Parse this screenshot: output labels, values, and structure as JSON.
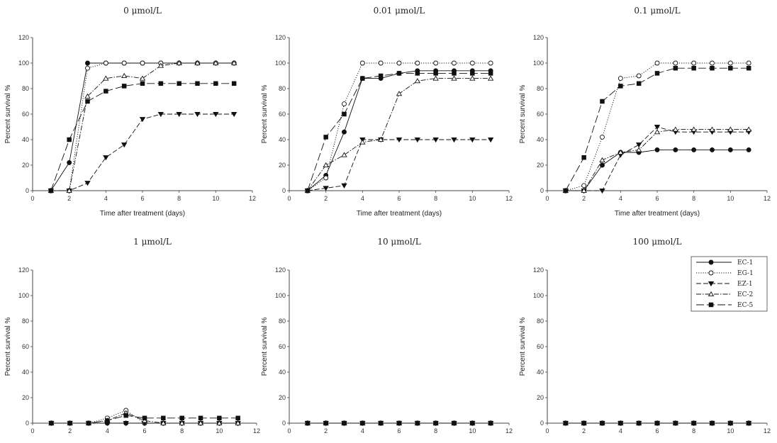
{
  "legend": [
    {
      "id": "ec1",
      "label": "EC-1",
      "marker": "circle-filled",
      "dash": ""
    },
    {
      "id": "eg1",
      "label": "EG-1",
      "marker": "circle-open",
      "dash": "1.2,2"
    },
    {
      "id": "ez1",
      "label": "EZ-1",
      "marker": "tri-down-filled",
      "dash": "7,3"
    },
    {
      "id": "ec2",
      "label": "EC-2",
      "marker": "tri-up-open",
      "dash": "7,2,1.5,2"
    },
    {
      "id": "ec5",
      "label": "EC-5",
      "marker": "square-filled",
      "dash": "11,4"
    }
  ],
  "chart_data": [
    {
      "type": "line",
      "title": "0 μmol/L",
      "xlabel": "Time after treatment (days)",
      "ylabel": "Percent survival %",
      "xlim": [
        0,
        12
      ],
      "ylim": [
        0,
        120
      ],
      "xticks": [
        0,
        2,
        4,
        6,
        8,
        10,
        12
      ],
      "yticks": [
        0,
        20,
        40,
        60,
        80,
        100,
        120
      ],
      "x": [
        1,
        2,
        3,
        4,
        5,
        6,
        7,
        8,
        9,
        10,
        11
      ],
      "series": [
        {
          "name": "EC-1",
          "values": [
            0,
            22,
            100,
            100,
            100,
            100,
            100,
            100,
            100,
            100,
            100
          ]
        },
        {
          "name": "EG-1",
          "values": [
            0,
            0,
            96,
            100,
            100,
            100,
            100,
            100,
            100,
            100,
            100
          ]
        },
        {
          "name": "EZ-1",
          "values": [
            0,
            0,
            6,
            26,
            36,
            56,
            60,
            60,
            60,
            60,
            60
          ]
        },
        {
          "name": "EC-2",
          "values": [
            0,
            0,
            74,
            88,
            90,
            88,
            98,
            100,
            100,
            100,
            100
          ]
        },
        {
          "name": "EC-5",
          "values": [
            0,
            40,
            70,
            78,
            82,
            84,
            84,
            84,
            84,
            84,
            84
          ]
        }
      ]
    },
    {
      "type": "line",
      "title": "0.01 μmol/L",
      "xlabel": "Time after treatment (days)",
      "ylabel": "Percent survival %",
      "xlim": [
        0,
        12
      ],
      "ylim": [
        0,
        120
      ],
      "xticks": [
        0,
        2,
        4,
        6,
        8,
        10,
        12
      ],
      "yticks": [
        0,
        20,
        40,
        60,
        80,
        100,
        120
      ],
      "x": [
        1,
        2,
        3,
        4,
        5,
        6,
        7,
        8,
        9,
        10,
        11
      ],
      "series": [
        {
          "name": "EC-1",
          "values": [
            0,
            12,
            46,
            88,
            88,
            92,
            94,
            94,
            94,
            94,
            94
          ]
        },
        {
          "name": "EG-1",
          "values": [
            0,
            10,
            68,
            100,
            100,
            100,
            100,
            100,
            100,
            100,
            100
          ]
        },
        {
          "name": "EZ-1",
          "values": [
            0,
            2,
            4,
            40,
            40,
            40,
            40,
            40,
            40,
            40,
            40
          ]
        },
        {
          "name": "EC-2",
          "values": [
            0,
            20,
            28,
            38,
            40,
            76,
            86,
            88,
            88,
            88,
            88
          ]
        },
        {
          "name": "EC-5",
          "values": [
            0,
            42,
            60,
            88,
            90,
            92,
            92,
            92,
            92,
            92,
            92
          ]
        }
      ]
    },
    {
      "type": "line",
      "title": "0.1 μmol/L",
      "xlabel": "Time after treatment (days)",
      "ylabel": "Percent survival %",
      "xlim": [
        0,
        12
      ],
      "ylim": [
        0,
        120
      ],
      "xticks": [
        0,
        2,
        4,
        6,
        8,
        10,
        12
      ],
      "yticks": [
        0,
        20,
        40,
        60,
        80,
        100,
        120
      ],
      "x": [
        1,
        2,
        3,
        4,
        5,
        6,
        7,
        8,
        9,
        10,
        11
      ],
      "series": [
        {
          "name": "EC-1",
          "values": [
            0,
            0,
            20,
            30,
            30,
            32,
            32,
            32,
            32,
            32,
            32
          ]
        },
        {
          "name": "EG-1",
          "values": [
            0,
            4,
            42,
            88,
            90,
            100,
            100,
            100,
            100,
            100,
            100
          ]
        },
        {
          "name": "EZ-1",
          "values": [
            0,
            0,
            0,
            28,
            36,
            50,
            46,
            46,
            46,
            46,
            46
          ]
        },
        {
          "name": "EC-2",
          "values": [
            0,
            0,
            24,
            30,
            32,
            46,
            48,
            48,
            48,
            48,
            48
          ]
        },
        {
          "name": "EC-5",
          "values": [
            0,
            26,
            70,
            82,
            84,
            92,
            96,
            96,
            96,
            96,
            96
          ]
        }
      ]
    },
    {
      "type": "line",
      "title": "1 μmol/L",
      "xlabel": "",
      "ylabel": "Percent survival %",
      "xlim": [
        0,
        12
      ],
      "ylim": [
        0,
        120
      ],
      "xticks": [
        0,
        2,
        4,
        6,
        8,
        10,
        12
      ],
      "yticks": [
        0,
        20,
        40,
        60,
        80,
        100,
        120
      ],
      "x": [
        1,
        2,
        3,
        4,
        5,
        6,
        7,
        8,
        9,
        10,
        11
      ],
      "series": [
        {
          "name": "EC-1",
          "values": [
            0,
            0,
            0,
            0,
            0,
            0,
            0,
            0,
            0,
            0,
            0
          ]
        },
        {
          "name": "EG-1",
          "values": [
            0,
            0,
            0,
            4,
            10,
            0,
            0,
            0,
            0,
            0,
            0
          ]
        },
        {
          "name": "EZ-1",
          "values": [
            0,
            0,
            0,
            0,
            0,
            0,
            0,
            0,
            0,
            0,
            0
          ]
        },
        {
          "name": "EC-2",
          "values": [
            0,
            0,
            0,
            2,
            8,
            2,
            0,
            0,
            0,
            0,
            0
          ]
        },
        {
          "name": "EC-5",
          "values": [
            0,
            0,
            0,
            2,
            6,
            4,
            4,
            4,
            4,
            4,
            4
          ]
        }
      ]
    },
    {
      "type": "line",
      "title": "10 μmol/L",
      "xlabel": "",
      "ylabel": "Percent survival %",
      "xlim": [
        0,
        12
      ],
      "ylim": [
        0,
        120
      ],
      "xticks": [
        0,
        2,
        4,
        6,
        8,
        10,
        12
      ],
      "yticks": [
        0,
        20,
        40,
        60,
        80,
        100,
        120
      ],
      "x": [
        1,
        2,
        3,
        4,
        5,
        6,
        7,
        8,
        9,
        10,
        11
      ],
      "series": [
        {
          "name": "EC-1",
          "values": [
            0,
            0,
            0,
            0,
            0,
            0,
            0,
            0,
            0,
            0,
            0
          ]
        },
        {
          "name": "EG-1",
          "values": [
            0,
            0,
            0,
            0,
            0,
            0,
            0,
            0,
            0,
            0,
            0
          ]
        },
        {
          "name": "EZ-1",
          "values": [
            0,
            0,
            0,
            0,
            0,
            0,
            0,
            0,
            0,
            0,
            0
          ]
        },
        {
          "name": "EC-2",
          "values": [
            0,
            0,
            0,
            0,
            0,
            0,
            0,
            0,
            0,
            0,
            0
          ]
        },
        {
          "name": "EC-5",
          "values": [
            0,
            0,
            0,
            0,
            0,
            0,
            0,
            0,
            0,
            0,
            0
          ]
        }
      ]
    },
    {
      "type": "line",
      "title": "100 μmol/L",
      "xlabel": "",
      "ylabel": "Percent survival %",
      "xlim": [
        0,
        12
      ],
      "ylim": [
        0,
        120
      ],
      "xticks": [
        0,
        2,
        4,
        6,
        8,
        10,
        12
      ],
      "yticks": [
        0,
        20,
        40,
        60,
        80,
        100,
        120
      ],
      "x": [
        1,
        2,
        3,
        4,
        5,
        6,
        7,
        8,
        9,
        10,
        11
      ],
      "series": [
        {
          "name": "EC-1",
          "values": [
            0,
            0,
            0,
            0,
            0,
            0,
            0,
            0,
            0,
            0,
            0
          ]
        },
        {
          "name": "EG-1",
          "values": [
            0,
            0,
            0,
            0,
            0,
            0,
            0,
            0,
            0,
            0,
            0
          ]
        },
        {
          "name": "EZ-1",
          "values": [
            0,
            0,
            0,
            0,
            0,
            0,
            0,
            0,
            0,
            0,
            0
          ]
        },
        {
          "name": "EC-2",
          "values": [
            0,
            0,
            0,
            0,
            0,
            0,
            0,
            0,
            0,
            0,
            0
          ]
        },
        {
          "name": "EC-5",
          "values": [
            0,
            0,
            0,
            0,
            0,
            0,
            0,
            0,
            0,
            0,
            0
          ]
        }
      ]
    }
  ]
}
